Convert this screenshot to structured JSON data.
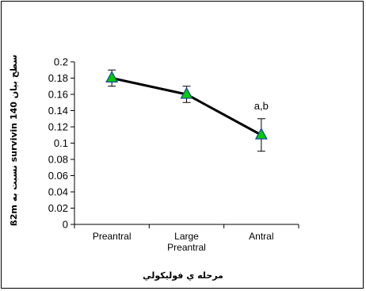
{
  "chart_data": {
    "type": "line",
    "categories": [
      "Preantral",
      "Large\nPreantral",
      "Antral"
    ],
    "series": [
      {
        "values": [
          0.18,
          0.16,
          0.11
        ],
        "error": [
          0.01,
          0.01,
          0.02
        ],
        "marker": "triangle",
        "marker_color": "#00cc00",
        "marker_edge": "#1a3fa8",
        "line_color": "#000000"
      }
    ],
    "annotations": [
      {
        "category": "Antral",
        "text": "a,b"
      }
    ],
    "xlabel": "مرحله ي فوليكولي",
    "ylabel": "سطح بيان survivin 140 نسبت به ß2m",
    "ylim": [
      0,
      0.2
    ],
    "yticks": [
      "0",
      "0.02",
      "0.04",
      "0.06",
      "0.08",
      "0.1",
      "0.12",
      "0.14",
      "0.16",
      "0.18",
      "0.2"
    ],
    "grid": false
  }
}
